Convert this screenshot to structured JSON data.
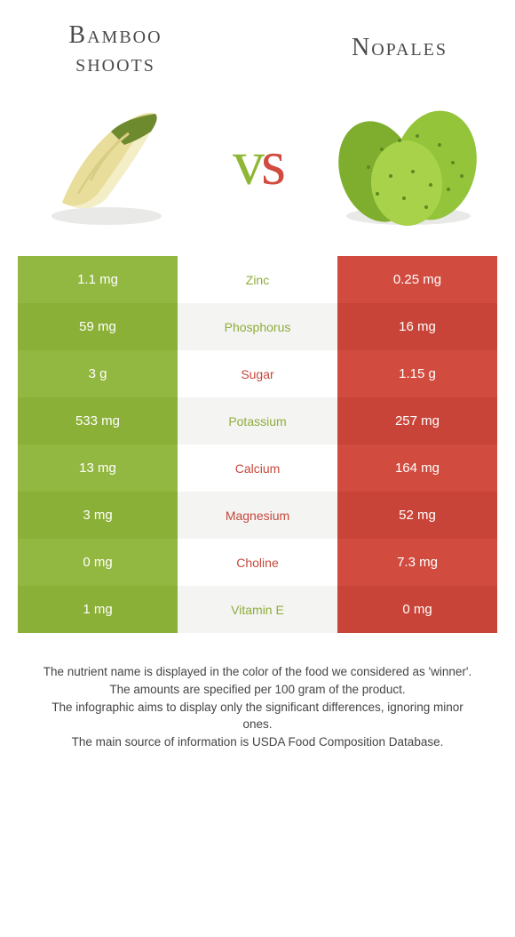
{
  "colors": {
    "left_a": "#93b841",
    "left_b": "#8bb037",
    "right_a": "#d14b3f",
    "right_b": "#c94438",
    "mid_a": "#ffffff",
    "mid_b": "#f4f4f2",
    "text_mid_left": "#8ead3a",
    "text_mid_right": "#c5483c"
  },
  "header": {
    "left_title": "Bamboo shoots",
    "right_title": "Nopales",
    "vs_v": "v",
    "vs_s": "s"
  },
  "rows": [
    {
      "left": "1.1 mg",
      "mid": "Zinc",
      "right": "0.25 mg",
      "winner": "left"
    },
    {
      "left": "59 mg",
      "mid": "Phosphorus",
      "right": "16 mg",
      "winner": "left"
    },
    {
      "left": "3 g",
      "mid": "Sugar",
      "right": "1.15 g",
      "winner": "right"
    },
    {
      "left": "533 mg",
      "mid": "Potassium",
      "right": "257 mg",
      "winner": "left"
    },
    {
      "left": "13 mg",
      "mid": "Calcium",
      "right": "164 mg",
      "winner": "right"
    },
    {
      "left": "3 mg",
      "mid": "Magnesium",
      "right": "52 mg",
      "winner": "right"
    },
    {
      "left": "0 mg",
      "mid": "Choline",
      "right": "7.3 mg",
      "winner": "right"
    },
    {
      "left": "1 mg",
      "mid": "Vitamin E",
      "right": "0 mg",
      "winner": "left"
    }
  ],
  "footer": {
    "l1": "The nutrient name is displayed in the color of the food we considered as 'winner'.",
    "l2": "The amounts are specified per 100 gram of the product.",
    "l3": "The infographic aims to display only the significant differences, ignoring minor ones.",
    "l4": "The main source of information is USDA Food Composition Database."
  }
}
